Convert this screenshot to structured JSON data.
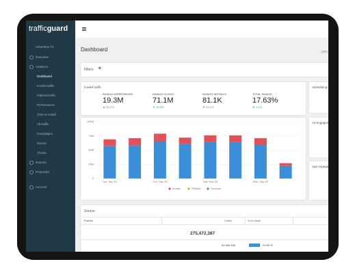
{
  "logo": {
    "light": "traffic",
    "bold": "guard"
  },
  "sidebar": {
    "account": "Advertiser #1",
    "top": [
      "Overview",
      "Analytics"
    ],
    "analytics": [
      "Dashboard",
      "Invalid traffic",
      "Filtered traffic",
      "Performance",
      "Time to install",
      "All traffic",
      "Campaigns",
      "Events",
      "Threat"
    ],
    "bottom": [
      "Reports",
      "Properties"
    ],
    "footer": "Account"
  },
  "header": {
    "title": "Dashboard",
    "timezone": "UTC"
  },
  "filters": {
    "label": "Filters",
    "add": "+"
  },
  "invalid_traffic": {
    "title": "Invalid traffic",
    "stats": [
      {
        "label": "INVALID IMPRESSIONS",
        "value": "19.3M",
        "change": "▲ 22.1%",
        "color": "#e0525a"
      },
      {
        "label": "INVALID CLICKS",
        "value": "71.1M",
        "change": "▼ 15.8%",
        "color": "#3aa66a"
      },
      {
        "label": "INVALID INSTALLS",
        "value": "81.1K",
        "change": "▼ 23.1%",
        "color": "#3aa66a"
      },
      {
        "label": "TOTAL INVALID",
        "value": "17.63%",
        "change": "▼ 3.1%",
        "color": "#3aa66a"
      }
    ]
  },
  "chart_data": {
    "type": "bar",
    "stacked": true,
    "categories": [
      "Tue, Sep 01",
      null,
      "Thu, Sep 03",
      null,
      "Sat, Sep 05",
      null,
      "Mon, Sep 07",
      null
    ],
    "series": [
      {
        "name": "Invalid",
        "color": "#e0525a",
        "values": [
          12000000,
          13000000,
          14000000,
          11000000,
          12000000,
          12000000,
          12000000,
          5000000
        ]
      },
      {
        "name": "Filtered",
        "color": "#f0a030",
        "values": [
          0,
          0,
          0,
          0,
          0,
          0,
          0,
          0
        ]
      },
      {
        "name": "Success",
        "color": "#3b8fd9",
        "values": [
          57000000,
          58000000,
          65000000,
          61000000,
          64000000,
          64000000,
          59000000,
          22000000
        ]
      }
    ],
    "ylim": [
      0,
      100000000
    ],
    "yticks": [
      0,
      {
        "value": 25000000,
        "label": "25M"
      },
      {
        "value": 50000000,
        "label": "50M"
      },
      {
        "value": 75000000,
        "label": "75M"
      },
      {
        "value": 100000000,
        "label": "100M"
      }
    ],
    "grid": true
  },
  "side_cards": [
    "Advertising a",
    "Ad engagem",
    "App engagem"
  ],
  "source": {
    "title": "Source",
    "columns": [
      "Partner",
      "Clicks",
      "% of clicks"
    ],
    "total": "275,472,387",
    "rows": [
      [
        "64,859,506",
        "23.55 %"
      ]
    ]
  }
}
